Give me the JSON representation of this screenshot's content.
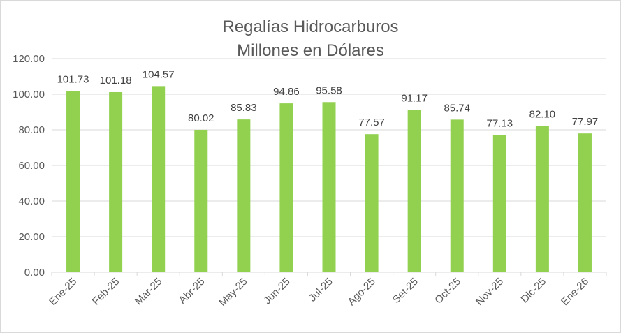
{
  "chart_data": {
    "type": "bar",
    "title": "Regalías Hidrocarburos",
    "subtitle": "Millones en Dólares",
    "xlabel": "",
    "ylabel": "",
    "categories": [
      "Ene-25",
      "Feb-25",
      "Mar-25",
      "Abr-25",
      "May-25",
      "Jun-25",
      "Jul-25",
      "Ago-25",
      "Set-25",
      "Oct-25",
      "Nov-25",
      "Dic-25",
      "Ene-26"
    ],
    "values": [
      101.73,
      101.18,
      104.57,
      80.02,
      85.83,
      94.86,
      95.58,
      77.57,
      91.17,
      85.74,
      77.13,
      82.1,
      77.97
    ],
    "value_labels": [
      "101.73",
      "101.18",
      "104.57",
      "80.02",
      "85.83",
      "94.86",
      "95.58",
      "77.57",
      "91.17",
      "85.74",
      "77.13",
      "82.10",
      "77.97"
    ],
    "ylim": [
      0,
      120
    ],
    "yticks": [
      "0.00",
      "20.00",
      "40.00",
      "60.00",
      "80.00",
      "100.00",
      "120.00"
    ],
    "grid": true,
    "legend": "none",
    "colors": {
      "bar": "#92d050",
      "grid": "#d9d9d9",
      "text": "#595959",
      "label": "#404040"
    }
  }
}
